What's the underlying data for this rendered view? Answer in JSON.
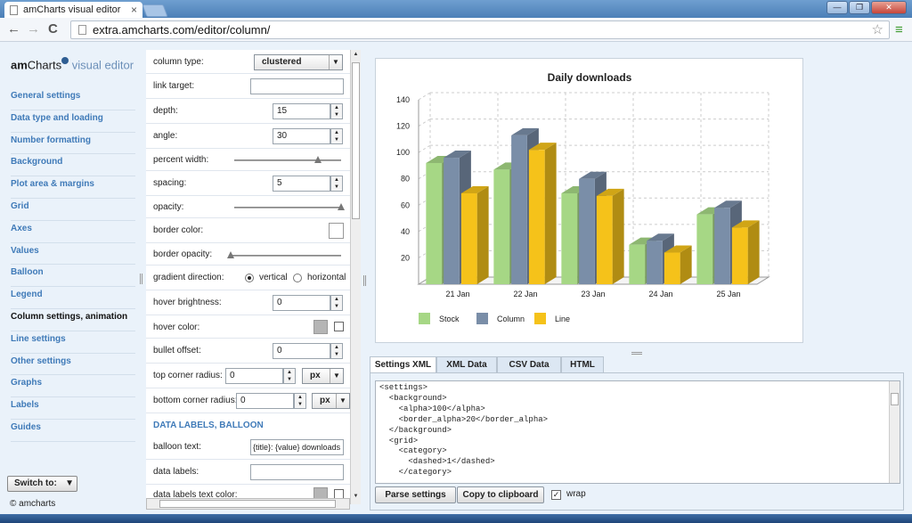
{
  "browser": {
    "tab_title": "amCharts visual editor",
    "tab_close": "×",
    "url": "extra.amcharts.com/editor/column/",
    "back": "←",
    "forward": "→",
    "reload": "C",
    "star": "☆",
    "menu": "≡",
    "win_min": "—",
    "win_max": "❐",
    "win_close": "✕"
  },
  "logo": {
    "bold": "am",
    "rest": "Charts",
    "suffix": " visual editor"
  },
  "nav": {
    "items": [
      {
        "label": "General settings"
      },
      {
        "label": "Data type and loading"
      },
      {
        "label": "Number formatting"
      },
      {
        "label": "Background"
      },
      {
        "label": "Plot area & margins"
      },
      {
        "label": "Grid"
      },
      {
        "label": "Axes"
      },
      {
        "label": "Values"
      },
      {
        "label": "Balloon"
      },
      {
        "label": "Legend"
      },
      {
        "label": "Column settings, animation",
        "active": true
      },
      {
        "label": "Line settings"
      },
      {
        "label": "Other settings"
      },
      {
        "label": "Graphs"
      },
      {
        "label": "Labels"
      },
      {
        "label": "Guides"
      }
    ],
    "switch_label": "Switch to:",
    "copyright": "© amcharts"
  },
  "settings": {
    "column_type_label": "column type:",
    "column_type_value": "clustered",
    "link_target_label": "link target:",
    "link_target_value": "",
    "depth_label": "depth:",
    "depth_value": "15",
    "angle_label": "angle:",
    "angle_value": "30",
    "percent_width_label": "percent width:",
    "percent_width_level": 0.78,
    "spacing_label": "spacing:",
    "spacing_value": "5",
    "opacity_label": "opacity:",
    "opacity_level": 1.0,
    "border_color_label": "border color:",
    "border_opacity_label": "border opacity:",
    "border_opacity_level": 0.0,
    "gradient_direction_label": "gradient direction:",
    "gradient_vertical": "vertical",
    "gradient_horizontal": "horizontal",
    "hover_brightness_label": "hover brightness:",
    "hover_brightness_value": "0",
    "hover_color_label": "hover color:",
    "bullet_offset_label": "bullet offset:",
    "bullet_offset_value": "0",
    "top_corner_radius_label": "top corner radius:",
    "top_corner_radius_value": "0",
    "top_corner_unit": "px",
    "bottom_corner_radius_label": "bottom corner radius:",
    "bottom_corner_radius_value": "0",
    "bottom_corner_unit": "px",
    "section_title": "DATA LABELS, BALLOON",
    "balloon_text_label": "balloon text:",
    "balloon_text_value": "{title}: {value} downloads",
    "data_labels_label": "data labels:",
    "data_labels_value": "",
    "data_labels_color_label": "data labels text color:"
  },
  "chart_data": {
    "type": "bar",
    "title": "Daily downloads",
    "categories": [
      "21 Jan",
      "22 Jan",
      "23 Jan",
      "24 Jan",
      "25 Jan"
    ],
    "series": [
      {
        "name": "Stock",
        "color": "#a6d785",
        "values": [
          92,
          87,
          69,
          30,
          53
        ]
      },
      {
        "name": "Column",
        "color": "#7a8ea8",
        "values": [
          96,
          113,
          80,
          33,
          58
        ]
      },
      {
        "name": "Line",
        "color": "#f5c21a",
        "values": [
          69,
          102,
          67,
          24,
          43
        ]
      }
    ],
    "yticks": [
      "20",
      "40",
      "60",
      "80",
      "100",
      "120",
      "140"
    ],
    "ylim": [
      0,
      140
    ],
    "grid": true,
    "legend_position": "bottom-left",
    "depth": 15,
    "angle": 30
  },
  "tabs": [
    "Settings XML",
    "XML Data",
    "CSV Data",
    "HTML"
  ],
  "code": {
    "lines": [
      "<settings>",
      "  <background>",
      "    <alpha>100</alpha>",
      "    <border_alpha>20</border_alpha>",
      "  </background>",
      "  <grid>",
      "    <category>",
      "      <dashed>1</dashed>",
      "    </category>"
    ]
  },
  "buttons": {
    "parse": "Parse settings",
    "copy": "Copy to clipboard",
    "wrap": "wrap"
  }
}
